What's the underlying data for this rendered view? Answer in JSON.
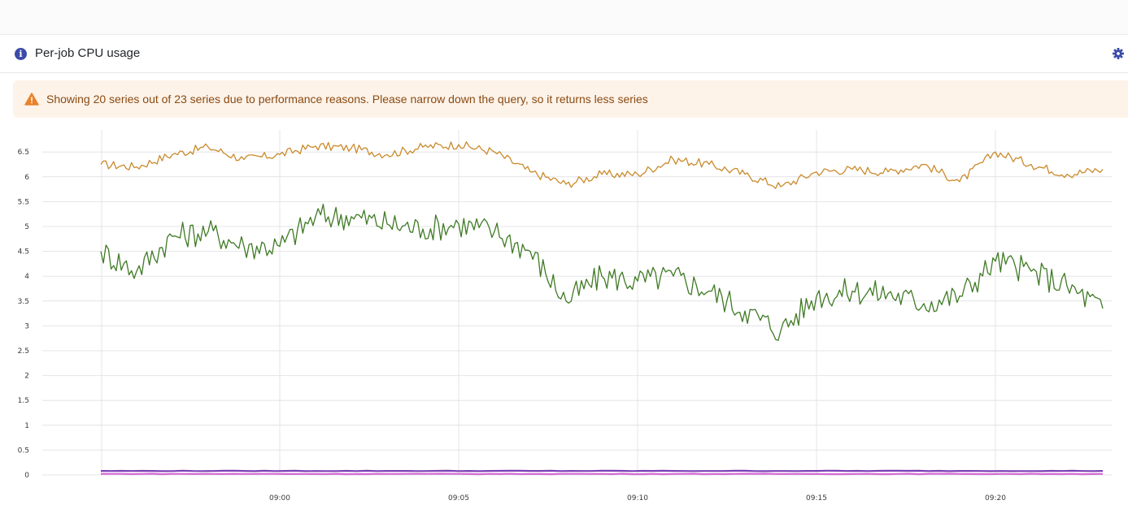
{
  "panel": {
    "title": "Per-job CPU usage",
    "icons": {
      "info": "info-icon",
      "settings": "gear-icon",
      "warning": "warning-triangle-icon"
    }
  },
  "warning": {
    "text": "Showing 20 series out of 23 series due to performance reasons. Please narrow down the query, so it returns less series"
  },
  "colors": {
    "accent": "#3b4ba8",
    "warning_bg": "#fdf3e9",
    "warning_icon": "#e9822a",
    "series_orange": "#c98a2b",
    "series_green": "#3f7a24",
    "series_purple": "#7b3fb4",
    "series_pink": "#d46ad4"
  },
  "chart_data": {
    "type": "line",
    "x_unit": "time (HH:MM)",
    "xlim": [
      "08:55",
      "09:23"
    ],
    "ylim": [
      0,
      6.8
    ],
    "y_ticks": [
      "0",
      "0.5",
      "1",
      "1.5",
      "2",
      "2.5",
      "3",
      "3.5",
      "4",
      "4.5",
      "5",
      "5.5",
      "6",
      "6.5"
    ],
    "x_ticks": [
      "09:00",
      "09:05",
      "09:10",
      "09:15",
      "09:20"
    ],
    "grid": true,
    "series": [
      {
        "color": "#c98a2b",
        "x": [
          "08:55",
          "08:56",
          "08:57",
          "08:58",
          "08:59",
          "09:00",
          "09:01",
          "09:02",
          "09:03",
          "09:04",
          "09:05",
          "09:06",
          "09:07",
          "09:08",
          "09:09",
          "09:10",
          "09:11",
          "09:12",
          "09:13",
          "09:14",
          "09:15",
          "09:16",
          "09:17",
          "09:18",
          "09:19",
          "09:20",
          "09:21",
          "09:22",
          "09:23"
        ],
        "values": [
          6.25,
          6.2,
          6.45,
          6.6,
          6.35,
          6.45,
          6.62,
          6.58,
          6.45,
          6.6,
          6.65,
          6.5,
          6.1,
          5.85,
          6.05,
          6.05,
          6.35,
          6.25,
          6.05,
          5.8,
          6.1,
          6.15,
          6.1,
          6.25,
          5.9,
          6.5,
          6.25,
          6.05,
          6.15
        ]
      },
      {
        "color": "#3f7a24",
        "x": [
          "08:55",
          "08:56",
          "08:57",
          "08:58",
          "08:59",
          "09:00",
          "09:01",
          "09:02",
          "09:03",
          "09:04",
          "09:05",
          "09:06",
          "09:07",
          "09:08",
          "09:09",
          "09:10",
          "09:11",
          "09:12",
          "09:13",
          "09:14",
          "09:15",
          "09:16",
          "09:17",
          "09:18",
          "09:19",
          "09:20",
          "09:21",
          "09:22",
          "09:23"
        ],
        "values": [
          4.5,
          4.1,
          4.8,
          4.9,
          4.6,
          4.6,
          5.2,
          5.2,
          5.05,
          4.95,
          5.05,
          4.9,
          4.5,
          3.5,
          4.0,
          3.9,
          4.0,
          3.7,
          3.3,
          2.9,
          3.6,
          3.7,
          3.65,
          3.45,
          3.6,
          4.3,
          4.1,
          3.8,
          3.35
        ]
      },
      {
        "color": "#7b3fb4",
        "x": [
          "08:55",
          "08:59",
          "09:03",
          "09:07",
          "09:11",
          "09:15",
          "09:19",
          "09:23"
        ],
        "values": [
          0.08,
          0.08,
          0.08,
          0.08,
          0.08,
          0.08,
          0.08,
          0.08
        ]
      },
      {
        "color": "#d46ad4",
        "x": [
          "08:55",
          "08:59",
          "09:03",
          "09:07",
          "09:11",
          "09:15",
          "09:19",
          "09:23"
        ],
        "values": [
          0.02,
          0.02,
          0.02,
          0.02,
          0.02,
          0.02,
          0.02,
          0.02
        ]
      }
    ]
  }
}
